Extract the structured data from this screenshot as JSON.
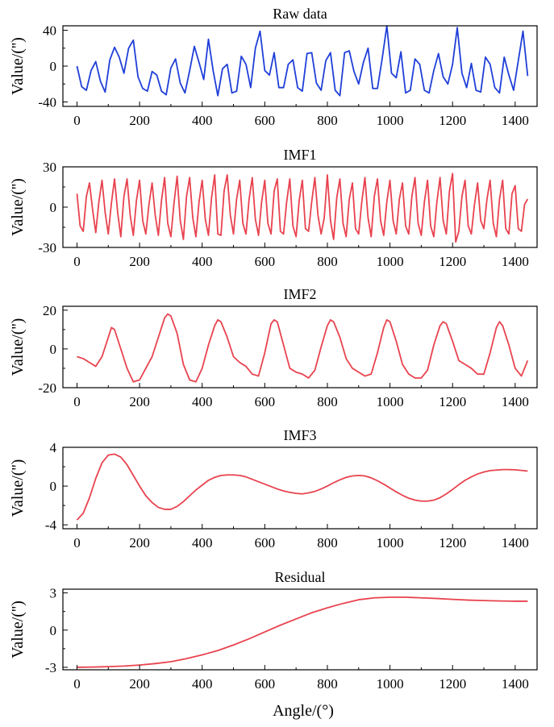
{
  "figure": {
    "xlabel": "Angle/(°)"
  },
  "chart_data": [
    {
      "type": "line",
      "title": "Raw data",
      "ylabel": "Value/('')",
      "xlim": [
        -45,
        1470
      ],
      "ylim": [
        -45,
        45
      ],
      "xticks": [
        0,
        200,
        400,
        600,
        800,
        1000,
        1200,
        1400
      ],
      "yticks": [
        -40,
        0,
        40
      ],
      "color": "#1f3fd8",
      "series": [
        {
          "x": [
            0,
            15,
            30,
            45,
            60,
            75,
            90,
            105,
            120,
            135,
            150,
            165,
            180,
            195,
            210,
            225,
            240,
            255,
            270,
            285,
            300,
            315,
            330,
            345,
            360,
            375,
            390,
            405,
            420,
            435,
            450,
            465,
            480,
            495,
            510,
            525,
            540,
            555,
            570,
            585,
            600,
            615,
            630,
            645,
            660,
            675,
            690,
            705,
            720,
            735,
            750,
            765,
            780,
            795,
            810,
            825,
            840,
            855,
            870,
            885,
            900,
            915,
            930,
            945,
            960,
            975,
            990,
            1005,
            1020,
            1035,
            1050,
            1065,
            1080,
            1095,
            1110,
            1125,
            1140,
            1155,
            1170,
            1185,
            1200,
            1215,
            1230,
            1245,
            1260,
            1275,
            1290,
            1305,
            1320,
            1335,
            1350,
            1365,
            1380,
            1395,
            1410,
            1425,
            1440
          ],
          "y": [
            0,
            -23,
            -27,
            -5,
            5,
            -17,
            -29,
            7,
            21,
            10,
            -8,
            20,
            29,
            -12,
            -25,
            -28,
            -6,
            -10,
            -28,
            -32,
            -2,
            8,
            -19,
            -30,
            -5,
            22,
            4,
            -15,
            30,
            -5,
            -33,
            -3,
            2,
            -30,
            -28,
            11,
            2,
            -24,
            20,
            39,
            -5,
            -10,
            15,
            -24,
            -24,
            2,
            7,
            -24,
            -28,
            14,
            15,
            -19,
            -27,
            6,
            15,
            -27,
            -33,
            15,
            17,
            -6,
            -20,
            4,
            20,
            -25,
            -25,
            8,
            45,
            -8,
            -13,
            16,
            -30,
            -27,
            8,
            2,
            -27,
            -30,
            -5,
            14,
            -12,
            -20,
            2,
            43,
            -8,
            -24,
            3,
            -27,
            -29,
            10,
            2,
            -24,
            -30,
            10,
            -10,
            -27,
            6,
            39,
            -11
          ]
        }
      ]
    },
    {
      "type": "line",
      "title": "IMF1",
      "ylabel": "Value/('')",
      "xlim": [
        -45,
        1470
      ],
      "ylim": [
        -30,
        30
      ],
      "xticks": [
        0,
        200,
        400,
        600,
        800,
        1000,
        1200,
        1400
      ],
      "yticks": [
        -30,
        0,
        30
      ],
      "color": "#e8434f",
      "series": [
        {
          "x": [
            0,
            10,
            20,
            30,
            40,
            50,
            60,
            70,
            80,
            90,
            100,
            110,
            120,
            130,
            140,
            150,
            160,
            170,
            180,
            190,
            200,
            210,
            220,
            230,
            240,
            250,
            260,
            270,
            280,
            290,
            300,
            310,
            320,
            330,
            340,
            350,
            360,
            370,
            380,
            390,
            400,
            410,
            420,
            430,
            440,
            450,
            460,
            470,
            480,
            490,
            500,
            510,
            520,
            530,
            540,
            550,
            560,
            570,
            580,
            590,
            600,
            610,
            620,
            630,
            640,
            650,
            660,
            670,
            680,
            690,
            700,
            710,
            720,
            730,
            740,
            750,
            760,
            770,
            780,
            790,
            800,
            810,
            820,
            830,
            840,
            850,
            860,
            870,
            880,
            890,
            900,
            910,
            920,
            930,
            940,
            950,
            960,
            970,
            980,
            990,
            1000,
            1010,
            1020,
            1030,
            1040,
            1050,
            1060,
            1070,
            1080,
            1090,
            1100,
            1110,
            1120,
            1130,
            1140,
            1150,
            1160,
            1170,
            1180,
            1190,
            1200,
            1210,
            1220,
            1230,
            1240,
            1250,
            1260,
            1270,
            1280,
            1290,
            1300,
            1310,
            1320,
            1330,
            1340,
            1350,
            1360,
            1370,
            1380,
            1390,
            1400,
            1410,
            1420,
            1430,
            1440
          ],
          "y": [
            10,
            -14,
            -18,
            8,
            18,
            -2,
            -19,
            4,
            20,
            -4,
            -20,
            3,
            21,
            -4,
            -22,
            8,
            21,
            -6,
            -21,
            5,
            20,
            -10,
            -20,
            2,
            18,
            -6,
            -21,
            5,
            22,
            -12,
            -22,
            3,
            23,
            -10,
            -24,
            8,
            22,
            -8,
            -22,
            4,
            20,
            -9,
            -21,
            7,
            24,
            -20,
            -21,
            12,
            24,
            -6,
            -20,
            6,
            20,
            -12,
            -20,
            6,
            22,
            -9,
            -21,
            4,
            20,
            -12,
            -20,
            12,
            21,
            -18,
            -20,
            4,
            21,
            -14,
            -22,
            5,
            20,
            -16,
            -18,
            4,
            22,
            -6,
            -20,
            -8,
            24,
            -10,
            -24,
            7,
            21,
            -12,
            -22,
            6,
            18,
            -16,
            -20,
            4,
            22,
            -8,
            -22,
            8,
            21,
            -10,
            -21,
            4,
            20,
            -10,
            -20,
            6,
            18,
            -14,
            -20,
            8,
            22,
            -12,
            -21,
            4,
            20,
            -14,
            -22,
            4,
            22,
            -10,
            -20,
            12,
            25,
            -26,
            -18,
            8,
            20,
            -14,
            -20,
            2,
            18,
            -10,
            -16,
            6,
            20,
            -12,
            -22,
            6,
            20,
            -16,
            -20,
            10,
            16,
            -16,
            -18,
            2,
            6
          ]
        }
      ]
    },
    {
      "type": "line",
      "title": "IMF2",
      "ylabel": "Value/('')",
      "xlim": [
        -45,
        1470
      ],
      "ylim": [
        -20,
        22
      ],
      "xticks": [
        0,
        200,
        400,
        600,
        800,
        1000,
        1200,
        1400
      ],
      "yticks": [
        -20,
        0,
        20
      ],
      "color": "#e8434f",
      "series": [
        {
          "x": [
            0,
            20,
            40,
            60,
            80,
            100,
            110,
            120,
            140,
            160,
            180,
            200,
            220,
            240,
            260,
            280,
            290,
            300,
            320,
            340,
            360,
            380,
            400,
            420,
            440,
            450,
            460,
            480,
            500,
            520,
            540,
            560,
            580,
            600,
            620,
            630,
            640,
            660,
            680,
            700,
            720,
            740,
            760,
            780,
            800,
            810,
            820,
            840,
            860,
            880,
            900,
            920,
            940,
            960,
            980,
            990,
            1000,
            1020,
            1040,
            1060,
            1080,
            1100,
            1120,
            1140,
            1160,
            1170,
            1180,
            1200,
            1220,
            1240,
            1260,
            1280,
            1300,
            1320,
            1340,
            1350,
            1360,
            1380,
            1400,
            1420,
            1440
          ],
          "y": [
            -4,
            -5,
            -7,
            -9,
            -4,
            6,
            11,
            10,
            0,
            -10,
            -17,
            -16,
            -10,
            -4,
            6,
            16,
            18,
            17,
            8,
            -8,
            -16,
            -17,
            -10,
            2,
            12,
            15,
            14,
            6,
            -4,
            -7,
            -9,
            -13,
            -14,
            -2,
            13,
            15,
            14,
            2,
            -10,
            -12,
            -13,
            -15,
            -11,
            1,
            12,
            15,
            14,
            6,
            -5,
            -10,
            -12,
            -14,
            -13,
            -2,
            11,
            15,
            14,
            4,
            -8,
            -13,
            -15,
            -15,
            -11,
            2,
            12,
            14,
            13,
            4,
            -6,
            -8,
            -10,
            -13,
            -13,
            -2,
            11,
            14,
            12,
            2,
            -10,
            -14,
            -6
          ]
        }
      ]
    },
    {
      "type": "line",
      "title": "IMF3",
      "ylabel": "Value/('')",
      "xlim": [
        -45,
        1470
      ],
      "ylim": [
        -4.4,
        4
      ],
      "xticks": [
        0,
        200,
        400,
        600,
        800,
        1000,
        1200,
        1400
      ],
      "yticks": [
        -4,
        0,
        4
      ],
      "color": "#e8434f",
      "series": [
        {
          "x": [
            0,
            20,
            40,
            60,
            80,
            100,
            120,
            140,
            160,
            180,
            200,
            220,
            240,
            260,
            280,
            300,
            320,
            340,
            360,
            380,
            400,
            420,
            440,
            460,
            480,
            500,
            520,
            540,
            560,
            580,
            600,
            620,
            640,
            660,
            680,
            700,
            720,
            740,
            760,
            780,
            800,
            820,
            840,
            860,
            880,
            900,
            920,
            940,
            960,
            980,
            1000,
            1020,
            1040,
            1060,
            1080,
            1100,
            1120,
            1140,
            1160,
            1180,
            1200,
            1220,
            1240,
            1260,
            1280,
            1300,
            1320,
            1340,
            1360,
            1380,
            1400,
            1420,
            1440
          ],
          "y": [
            -3.5,
            -2.8,
            -1.2,
            0.8,
            2.4,
            3.2,
            3.3,
            3.0,
            2.2,
            1.1,
            0.0,
            -1.0,
            -1.7,
            -2.2,
            -2.4,
            -2.4,
            -2.1,
            -1.6,
            -1.0,
            -0.4,
            0.1,
            0.6,
            0.9,
            1.1,
            1.15,
            1.15,
            1.1,
            0.95,
            0.7,
            0.45,
            0.2,
            -0.05,
            -0.3,
            -0.5,
            -0.65,
            -0.75,
            -0.8,
            -0.7,
            -0.55,
            -0.3,
            0.0,
            0.35,
            0.65,
            0.9,
            1.05,
            1.1,
            1.05,
            0.85,
            0.55,
            0.2,
            -0.2,
            -0.6,
            -0.95,
            -1.25,
            -1.45,
            -1.55,
            -1.55,
            -1.45,
            -1.2,
            -0.8,
            -0.35,
            0.15,
            0.6,
            0.95,
            1.25,
            1.45,
            1.6,
            1.65,
            1.7,
            1.7,
            1.68,
            1.62,
            1.55
          ]
        }
      ]
    },
    {
      "type": "line",
      "title": "Residual",
      "ylabel": "Value/('')",
      "xlim": [
        -45,
        1470
      ],
      "ylim": [
        -3.2,
        3.3
      ],
      "xticks": [
        0,
        200,
        400,
        600,
        800,
        1000,
        1200,
        1400
      ],
      "yticks": [
        -3,
        0,
        3
      ],
      "color": "#e8434f",
      "series": [
        {
          "x": [
            0,
            50,
            100,
            150,
            200,
            250,
            300,
            350,
            400,
            450,
            500,
            550,
            600,
            650,
            700,
            750,
            800,
            850,
            900,
            950,
            1000,
            1050,
            1100,
            1150,
            1200,
            1250,
            1300,
            1350,
            1400,
            1440
          ],
          "y": [
            -3.0,
            -2.98,
            -2.95,
            -2.9,
            -2.82,
            -2.7,
            -2.55,
            -2.3,
            -2.0,
            -1.65,
            -1.2,
            -0.7,
            -0.15,
            0.4,
            0.9,
            1.4,
            1.8,
            2.15,
            2.45,
            2.6,
            2.65,
            2.65,
            2.6,
            2.55,
            2.48,
            2.42,
            2.38,
            2.35,
            2.33,
            2.33
          ]
        }
      ]
    }
  ]
}
